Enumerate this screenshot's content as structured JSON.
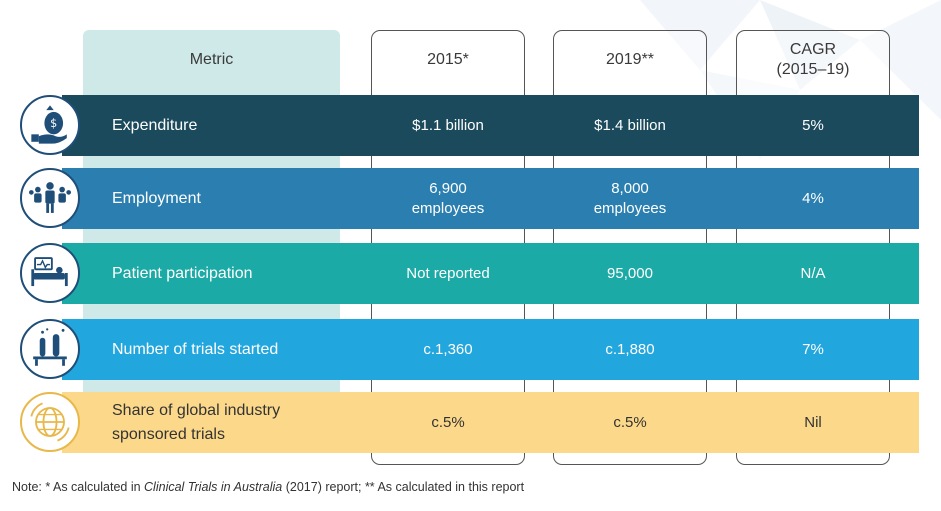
{
  "headers": {
    "metric": "Metric",
    "y2015": "2015*",
    "y2019": "2019**",
    "cagr": "CAGR\n(2015–19)"
  },
  "rows": [
    {
      "metric": "Expenditure",
      "v2015": "$1.1 billion",
      "v2019": "$1.4 billion",
      "cagr": "5%",
      "icon": "money-bag-hand-icon",
      "color": "#1b4a5c",
      "text_color": "#ffffff"
    },
    {
      "metric": "Employment",
      "v2015": "6,900\nemployees",
      "v2019": "8,000\nemployees",
      "cagr": "4%",
      "icon": "people-group-icon",
      "color": "#2a7fb0",
      "text_color": "#ffffff"
    },
    {
      "metric": "Patient participation",
      "v2015": "Not reported",
      "v2019": "95,000",
      "cagr": "N/A",
      "icon": "hospital-bed-icon",
      "color": "#1baaa6",
      "text_color": "#ffffff"
    },
    {
      "metric": "Number of trials started",
      "v2015": "c.1,360",
      "v2019": "c.1,880",
      "cagr": "7%",
      "icon": "test-tubes-icon",
      "color": "#22a6de",
      "text_color": "#ffffff"
    },
    {
      "metric": "Share of global industry\nsponsored trials",
      "v2015": "c.5%",
      "v2019": "c.5%",
      "cagr": "Nil",
      "icon": "globe-icon",
      "color": "#fcd98a",
      "text_color": "#333333"
    }
  ],
  "note": {
    "prefix": "Note: * As calculated in ",
    "italic": "Clinical Trials in Australia",
    "suffix": " (2017) report; ** As calculated in this report"
  },
  "colors": {
    "metric_panel": "#cfe8e8",
    "icon_border_dark": "#1f4e79",
    "icon_border_light": "#e8b84a"
  }
}
